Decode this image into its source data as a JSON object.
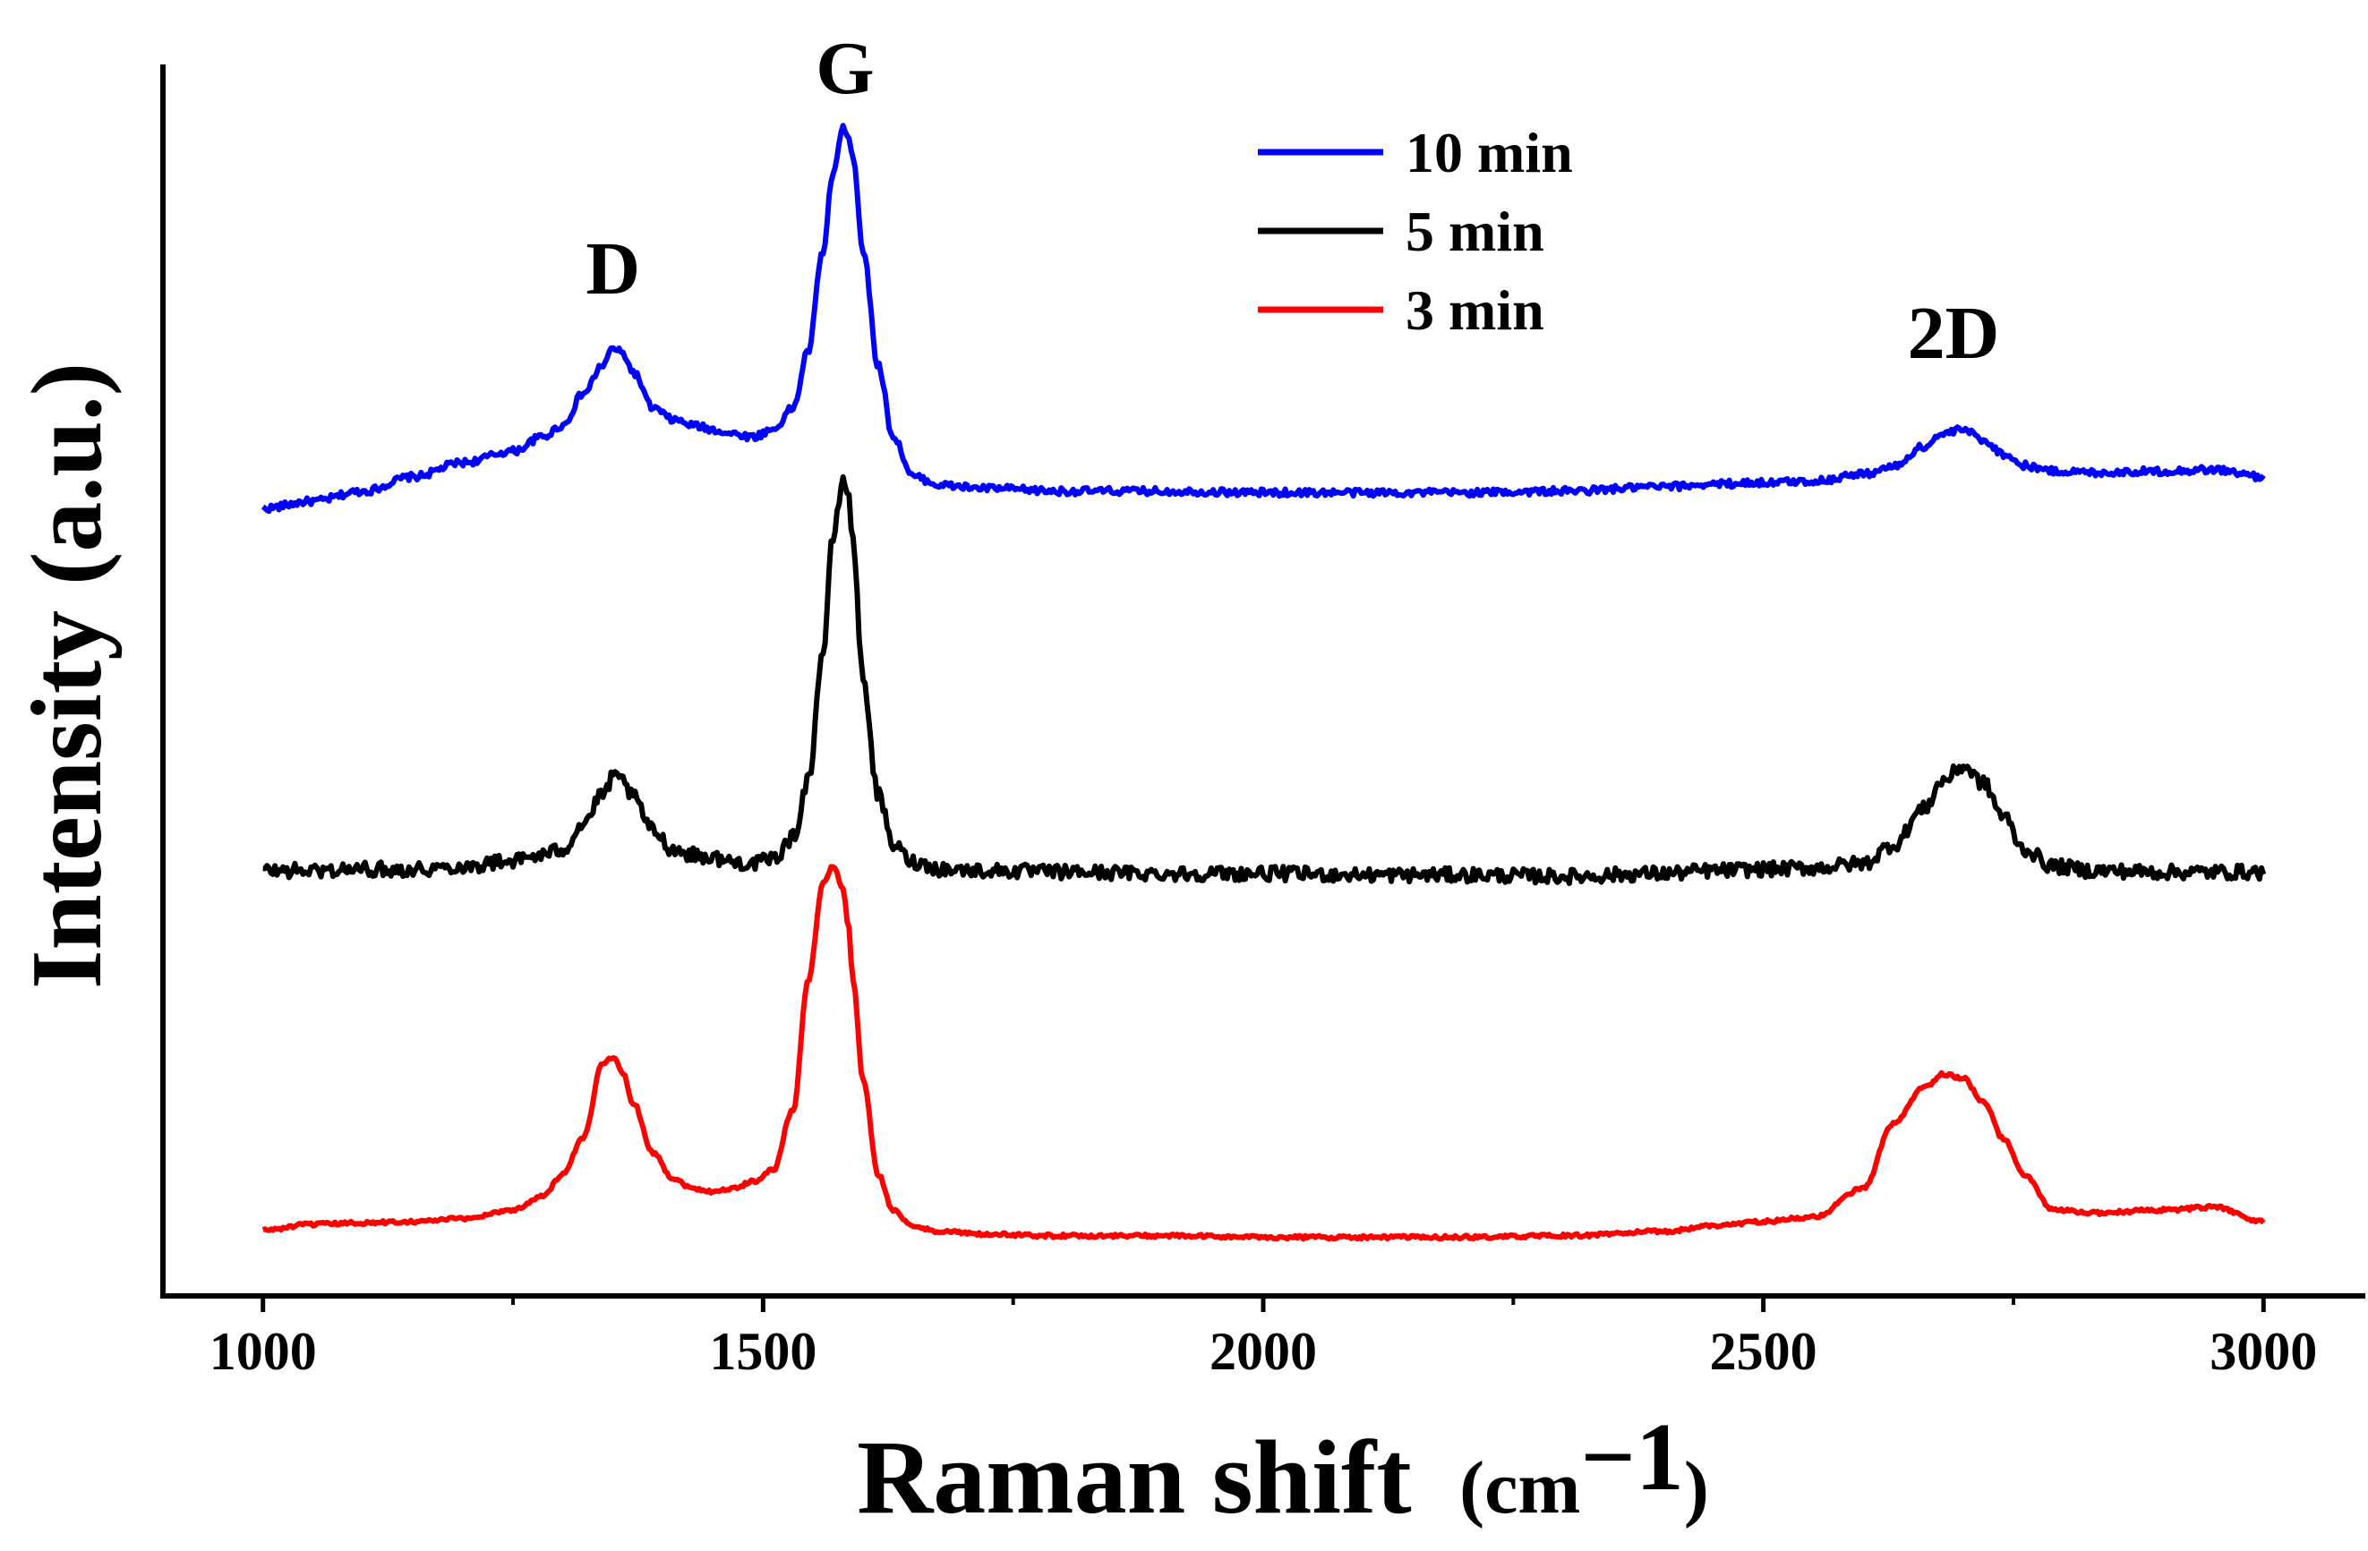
{
  "chart_data": {
    "type": "line",
    "title": "",
    "xlabel": "Raman shift",
    "xlabel_unit_base": "(cm",
    "xlabel_unit_exp": "−1",
    "xlabel_unit_close": ")",
    "ylabel": "Intensity (a.u.)",
    "xlim": [
      900,
      3100
    ],
    "ylim": [
      0,
      8.6
    ],
    "xticks": [
      1000,
      1500,
      2000,
      2500,
      3000
    ],
    "xtick_labels": [
      "1000",
      "1500",
      "2000",
      "2500",
      "3000"
    ],
    "minor_xticks": [
      1250,
      1750,
      2250,
      2750
    ],
    "y_ticks_shown": false,
    "grid": false,
    "legend_position": "top-center",
    "peak_annotations": [
      {
        "label": "D",
        "x": 1350,
        "y": 7.0
      },
      {
        "label": "G",
        "x": 1582,
        "y": 8.4
      },
      {
        "label": "2D",
        "x": 2690,
        "y": 6.55
      }
    ],
    "x": [
      1000,
      1050,
      1100,
      1150,
      1200,
      1250,
      1280,
      1300,
      1320,
      1340,
      1350,
      1360,
      1370,
      1390,
      1410,
      1430,
      1450,
      1470,
      1490,
      1510,
      1530,
      1545,
      1560,
      1570,
      1580,
      1585,
      1590,
      1600,
      1615,
      1630,
      1650,
      1680,
      1720,
      1800,
      1900,
      2000,
      2100,
      2200,
      2300,
      2400,
      2450,
      2500,
      2550,
      2600,
      2630,
      2660,
      2680,
      2700,
      2720,
      2740,
      2760,
      2790,
      2830,
      2900,
      2950,
      3000
    ],
    "series": [
      {
        "name": "10 min",
        "color": "#0000ff",
        "values": [
          5.5,
          5.55,
          5.62,
          5.72,
          5.82,
          5.9,
          6.0,
          6.08,
          6.3,
          6.5,
          6.62,
          6.58,
          6.45,
          6.2,
          6.12,
          6.08,
          6.05,
          6.02,
          6.0,
          6.05,
          6.2,
          6.6,
          7.3,
          7.85,
          8.15,
          8.12,
          7.95,
          7.3,
          6.5,
          6.0,
          5.72,
          5.66,
          5.64,
          5.62,
          5.62,
          5.61,
          5.61,
          5.61,
          5.62,
          5.65,
          5.67,
          5.68,
          5.69,
          5.74,
          5.79,
          5.93,
          6.02,
          6.05,
          5.98,
          5.88,
          5.8,
          5.76,
          5.75,
          5.76,
          5.77,
          5.72
        ]
      },
      {
        "name": "5 min",
        "color": "#000000",
        "values": [
          2.97,
          2.97,
          2.98,
          2.98,
          3.0,
          3.04,
          3.08,
          3.12,
          3.3,
          3.5,
          3.62,
          3.6,
          3.48,
          3.25,
          3.12,
          3.08,
          3.06,
          3.03,
          3.02,
          3.05,
          3.2,
          3.6,
          4.5,
          5.3,
          5.7,
          5.62,
          5.25,
          4.3,
          3.5,
          3.15,
          3.03,
          2.98,
          2.97,
          2.96,
          2.95,
          2.95,
          2.94,
          2.94,
          2.93,
          2.95,
          2.97,
          2.98,
          2.99,
          3.02,
          3.15,
          3.4,
          3.6,
          3.7,
          3.58,
          3.35,
          3.12,
          3.0,
          2.97,
          2.96,
          2.96,
          2.96
        ]
      },
      {
        "name": "3 min",
        "color": "#ff0000",
        "values": [
          0.46,
          0.5,
          0.51,
          0.52,
          0.54,
          0.6,
          0.7,
          0.85,
          1.1,
          1.63,
          1.67,
          1.55,
          1.35,
          1.0,
          0.82,
          0.75,
          0.73,
          0.75,
          0.8,
          0.88,
          1.3,
          2.2,
          2.88,
          3.0,
          2.85,
          2.6,
          2.2,
          1.5,
          0.85,
          0.6,
          0.48,
          0.45,
          0.43,
          0.42,
          0.42,
          0.41,
          0.41,
          0.41,
          0.42,
          0.45,
          0.49,
          0.52,
          0.55,
          0.75,
          1.2,
          1.45,
          1.55,
          1.52,
          1.35,
          1.1,
          0.85,
          0.6,
          0.58,
          0.6,
          0.62,
          0.52
        ]
      }
    ]
  }
}
